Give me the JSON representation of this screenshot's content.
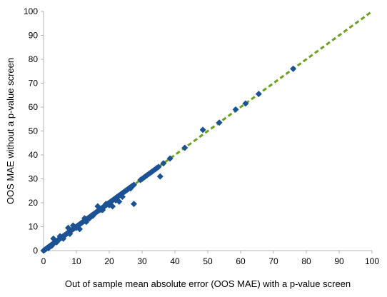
{
  "chart_data": {
    "type": "scatter",
    "title": "",
    "xlabel": "Out of sample mean absolute error (OOS MAE) with a p-value screen",
    "ylabel": "OOS MAE without a p-value screen",
    "xlim": [
      0,
      100
    ],
    "ylim": [
      0,
      100
    ],
    "xticks": [
      0,
      10,
      20,
      30,
      40,
      50,
      60,
      70,
      80,
      90,
      100
    ],
    "yticks": [
      0,
      10,
      20,
      30,
      40,
      50,
      60,
      70,
      80,
      90,
      100
    ],
    "grid": false,
    "legend": "none",
    "colors": {
      "points": "#1a5294",
      "reference_line": "#6aa121",
      "axis": "#b3b3b3"
    },
    "reference_line": {
      "style": "dashed",
      "x": [
        0,
        100
      ],
      "y": [
        0,
        100
      ]
    },
    "points": {
      "x": [
        0,
        0.3,
        0.5,
        0.8,
        1,
        1.2,
        1.5,
        1.8,
        2,
        2.3,
        2.5,
        2.8,
        3,
        3.2,
        3.5,
        3.8,
        4,
        4.3,
        4.5,
        4.8,
        5,
        5.3,
        5.5,
        5.8,
        6,
        6.3,
        6.5,
        6.8,
        7,
        7.3,
        7.5,
        7.8,
        8,
        8.3,
        8.5,
        8.8,
        9,
        9.3,
        9.5,
        9.8,
        10,
        10.3,
        10.5,
        10.8,
        11,
        11.3,
        11.5,
        11.8,
        12,
        12.3,
        12.5,
        12.8,
        13,
        13.3,
        13.5,
        13.8,
        14,
        14.3,
        14.5,
        14.8,
        15,
        15.3,
        15.5,
        15.8,
        16,
        16.3,
        16.5,
        16.8,
        17,
        17.3,
        17.5,
        17.8,
        18,
        18.3,
        18.5,
        18.8,
        19,
        19.3,
        19.5,
        19.8,
        20,
        20.3,
        20.5,
        20.8,
        21,
        21.3,
        21.5,
        21.8,
        22,
        22.3,
        22.5,
        22.8,
        23,
        23.3,
        23.5,
        23.8,
        24,
        24.3,
        24.5,
        24.8,
        25,
        25.3,
        25.5,
        25.8,
        26,
        26.3,
        26.5,
        26.8,
        27,
        27.5,
        29.5,
        30,
        30.5,
        31,
        31.5,
        32,
        32.5,
        33,
        33.5,
        34,
        34.5,
        35,
        36.5,
        38.5,
        43,
        48.5,
        53.5,
        58.5,
        61.5,
        65.5,
        76,
        3,
        5,
        7.5,
        9,
        11,
        12.5,
        15,
        16.5,
        17.5,
        19,
        21,
        23,
        26.5,
        27.5,
        35.5,
        1.5,
        2.5,
        4,
        6,
        8,
        10,
        13,
        14,
        18,
        20,
        22,
        24
      ],
      "y": [
        0,
        0.3,
        0.5,
        0.8,
        1,
        1.2,
        1.5,
        1.8,
        2,
        2.3,
        2.5,
        2.8,
        3,
        3.2,
        3.5,
        3.8,
        4,
        4.3,
        4.5,
        4.8,
        5,
        5.3,
        5.5,
        5.8,
        6,
        6.3,
        6.5,
        6.8,
        7,
        7.3,
        7.5,
        7.8,
        8,
        8.3,
        8.5,
        8.8,
        9,
        9.3,
        9.5,
        9.8,
        10,
        10.3,
        10.5,
        10.8,
        11,
        11.3,
        11.5,
        11.8,
        12,
        12.3,
        12.5,
        12.8,
        13,
        13.3,
        13.5,
        13.8,
        14,
        14.3,
        14.5,
        14.8,
        15,
        15.3,
        15.5,
        15.8,
        16,
        16.3,
        16.5,
        16.8,
        17,
        17.3,
        17.5,
        17.8,
        18,
        18.3,
        18.5,
        18.8,
        19,
        19.3,
        19.5,
        19.8,
        20,
        20.3,
        20.5,
        20.8,
        21,
        21.3,
        21.5,
        21.8,
        22,
        22.3,
        22.5,
        22.8,
        23,
        23.3,
        23.5,
        23.8,
        24,
        24.3,
        24.5,
        24.8,
        25,
        25.3,
        25.5,
        25.8,
        26,
        26.3,
        26.5,
        26.8,
        27,
        27.5,
        29.5,
        30,
        30.5,
        31,
        31.5,
        32,
        32.5,
        33,
        33.5,
        34,
        34.5,
        35,
        36.5,
        38.5,
        43,
        50.5,
        53.5,
        59,
        61.5,
        65.5,
        76,
        5,
        6,
        9.5,
        10.5,
        9,
        13.5,
        14.5,
        18.5,
        17,
        19.5,
        18.5,
        20.5,
        26,
        19.5,
        31,
        1,
        2,
        3.5,
        5,
        7,
        9.5,
        12,
        13.5,
        17,
        19,
        21,
        22.5
      ]
    }
  }
}
